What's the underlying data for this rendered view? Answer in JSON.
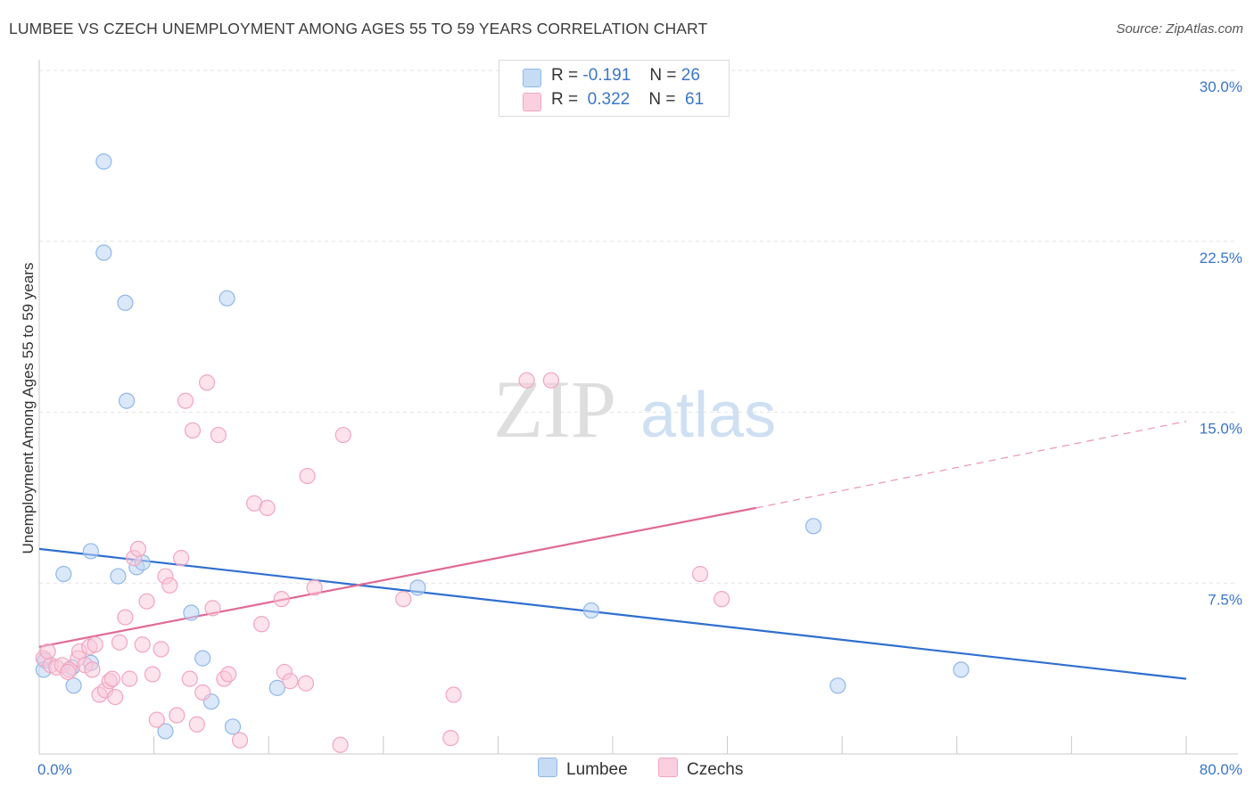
{
  "title": "LUMBEE VS CZECH UNEMPLOYMENT AMONG AGES 55 TO 59 YEARS CORRELATION CHART",
  "source": "Source: ZipAtlas.com",
  "watermark": {
    "zip": "ZIP",
    "atlas": "atlas"
  },
  "legend_top": [
    {
      "r_label": "R =",
      "r_value": "-0.191",
      "n_label": "N =",
      "n_value": "26",
      "color": "#8fb8ea"
    },
    {
      "r_label": "R =",
      "r_value": "0.322",
      "n_label": "N =",
      "n_value": "61",
      "color": "#f2a6be"
    }
  ],
  "chart_data": {
    "type": "scatter",
    "title": "LUMBEE VS CZECH UNEMPLOYMENT AMONG AGES 55 TO 59 YEARS CORRELATION CHART",
    "xlabel": "",
    "ylabel": "Unemployment Among Ages 55 to 59 years",
    "xlim": [
      0,
      80
    ],
    "ylim": [
      0,
      30
    ],
    "x_ticks": [
      0,
      80
    ],
    "x_tick_labels": [
      "0.0%",
      "80.0%"
    ],
    "y_ticks": [
      7.5,
      15,
      22.5,
      30
    ],
    "y_tick_labels": [
      "7.5%",
      "15.0%",
      "22.5%",
      "30.0%"
    ],
    "grid": true,
    "legend_position": "bottom-center",
    "series": [
      {
        "name": "Lumbee",
        "color": "#8fb8ea",
        "line_color": "#2f6fcf",
        "points": [
          [
            0.4,
            4.1
          ],
          [
            2.3,
            3.8
          ],
          [
            1.7,
            7.9
          ],
          [
            2.4,
            3.0
          ],
          [
            3.6,
            8.9
          ],
          [
            3.6,
            4.0
          ],
          [
            4.5,
            26.0
          ],
          [
            4.5,
            22.0
          ],
          [
            5.5,
            7.8
          ],
          [
            6.0,
            19.8
          ],
          [
            6.1,
            15.5
          ],
          [
            6.8,
            8.2
          ],
          [
            7.2,
            8.4
          ],
          [
            8.8,
            1.0
          ],
          [
            10.6,
            6.2
          ],
          [
            11.4,
            4.2
          ],
          [
            12.0,
            2.3
          ],
          [
            13.1,
            20.0
          ],
          [
            13.5,
            1.2
          ],
          [
            16.6,
            2.9
          ],
          [
            26.4,
            7.3
          ],
          [
            38.5,
            6.3
          ],
          [
            54.0,
            10.0
          ],
          [
            55.7,
            3.0
          ],
          [
            64.3,
            3.7
          ],
          [
            0.3,
            3.7
          ]
        ],
        "trend": {
          "x": [
            0,
            80
          ],
          "y": [
            9.0,
            3.3
          ]
        }
      },
      {
        "name": "Czechs",
        "color": "#f2a6be",
        "line_color": "#e06a94",
        "points": [
          [
            0.3,
            4.2
          ],
          [
            0.8,
            3.9
          ],
          [
            1.2,
            3.8
          ],
          [
            1.6,
            3.9
          ],
          [
            2.1,
            3.7
          ],
          [
            2.7,
            4.2
          ],
          [
            2.8,
            4.5
          ],
          [
            3.2,
            3.9
          ],
          [
            3.5,
            4.7
          ],
          [
            3.7,
            3.7
          ],
          [
            3.9,
            4.8
          ],
          [
            4.2,
            2.6
          ],
          [
            4.6,
            2.8
          ],
          [
            4.9,
            3.2
          ],
          [
            5.1,
            3.3
          ],
          [
            5.3,
            2.5
          ],
          [
            5.6,
            4.9
          ],
          [
            6.0,
            6.0
          ],
          [
            6.3,
            3.3
          ],
          [
            6.6,
            8.6
          ],
          [
            6.9,
            9.0
          ],
          [
            7.2,
            4.8
          ],
          [
            7.5,
            6.7
          ],
          [
            7.9,
            3.5
          ],
          [
            8.2,
            1.5
          ],
          [
            8.5,
            4.6
          ],
          [
            8.8,
            7.8
          ],
          [
            9.1,
            7.4
          ],
          [
            9.6,
            1.7
          ],
          [
            9.9,
            8.6
          ],
          [
            10.2,
            15.5
          ],
          [
            10.5,
            3.3
          ],
          [
            10.7,
            14.2
          ],
          [
            11.0,
            1.3
          ],
          [
            11.4,
            2.7
          ],
          [
            11.7,
            16.3
          ],
          [
            12.1,
            6.4
          ],
          [
            12.5,
            14.0
          ],
          [
            12.9,
            3.3
          ],
          [
            13.2,
            3.5
          ],
          [
            14.0,
            0.6
          ],
          [
            15.0,
            11.0
          ],
          [
            15.5,
            5.7
          ],
          [
            15.9,
            10.8
          ],
          [
            16.9,
            6.8
          ],
          [
            17.1,
            3.6
          ],
          [
            17.5,
            3.2
          ],
          [
            18.6,
            3.1
          ],
          [
            18.7,
            12.2
          ],
          [
            19.2,
            7.3
          ],
          [
            21.0,
            0.4
          ],
          [
            21.2,
            14.0
          ],
          [
            25.4,
            6.8
          ],
          [
            28.7,
            0.7
          ],
          [
            28.9,
            2.6
          ],
          [
            34.0,
            16.4
          ],
          [
            35.7,
            16.4
          ],
          [
            46.1,
            7.9
          ],
          [
            47.6,
            6.8
          ],
          [
            2.0,
            3.6
          ],
          [
            0.6,
            4.5
          ]
        ],
        "trend": {
          "x": [
            0,
            50
          ],
          "y": [
            4.7,
            10.8
          ]
        },
        "trend_dashed": {
          "x": [
            50,
            80
          ],
          "y": [
            10.8,
            14.6
          ]
        }
      }
    ]
  },
  "legend_bottom": [
    {
      "label": "Lumbee",
      "color": "#8fb8ea"
    },
    {
      "label": "Czechs",
      "color": "#f2a6be"
    }
  ]
}
